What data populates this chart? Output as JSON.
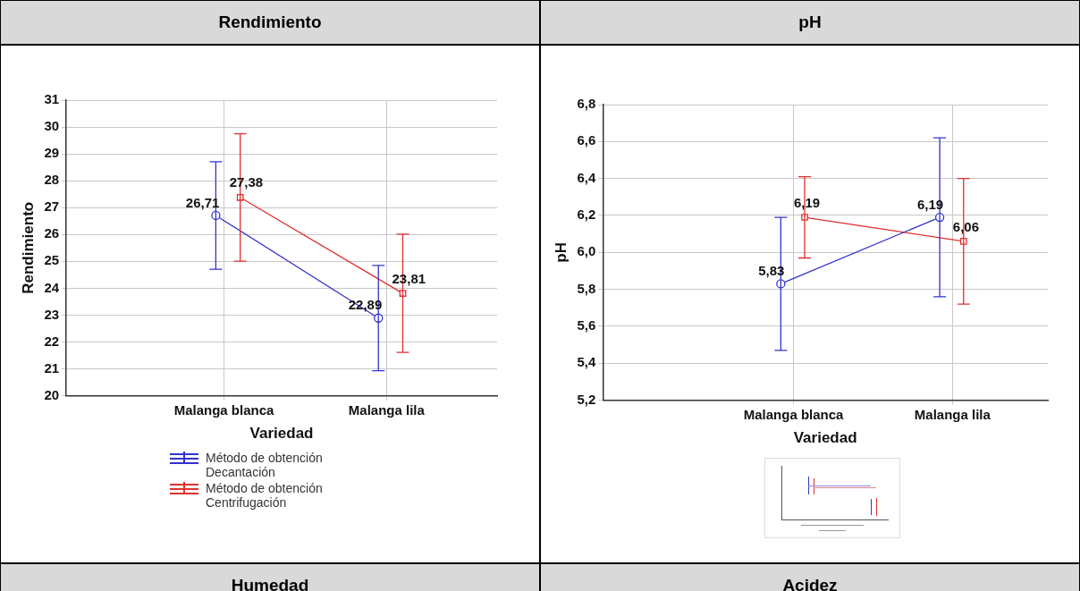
{
  "chart_data": [
    {
      "type": "line",
      "title": "Rendimiento",
      "xlabel": "Variedad",
      "ylabel": "Rendimiento",
      "categories": [
        "Malanga blanca",
        "Malanga lila"
      ],
      "series": [
        {
          "name": "Método de obtención Decantación",
          "color": "#3333cc",
          "marker": "circle",
          "values": [
            26.71,
            22.89
          ],
          "errors": [
            2.0,
            1.96
          ],
          "value_labels": [
            "26,71",
            "22,89"
          ]
        },
        {
          "name": "Método de obtención Centrifugación",
          "color": "#e03030",
          "marker": "square",
          "values": [
            27.38,
            23.81
          ],
          "errors": [
            2.37,
            2.2
          ],
          "value_labels": [
            "27,38",
            "23,81"
          ]
        }
      ],
      "ylim": [
        20,
        31
      ],
      "yticks": [
        20,
        21,
        22,
        23,
        24,
        25,
        26,
        27,
        28,
        29,
        30,
        31
      ],
      "grid": true,
      "legend": "bottom"
    },
    {
      "type": "line",
      "title": "pH",
      "xlabel": "Variedad",
      "ylabel": "pH",
      "categories": [
        "Malanga blanca",
        "Malanga lila"
      ],
      "series": [
        {
          "color": "#3333cc",
          "marker": "circle",
          "values": [
            5.83,
            6.19
          ],
          "errors": [
            0.36,
            0.43
          ],
          "value_labels": [
            "5,83",
            "6,19"
          ]
        },
        {
          "color": "#e03030",
          "marker": "square",
          "values": [
            6.19,
            6.06
          ],
          "errors": [
            0.22,
            0.34
          ],
          "value_labels": [
            "6,19",
            "6,06"
          ]
        }
      ],
      "ylim": [
        5.2,
        6.8
      ],
      "yticks": [
        {
          "value": 5.2,
          "label": "5,2"
        },
        {
          "value": 5.4,
          "label": "5,4"
        },
        {
          "value": 5.6,
          "label": "5,6"
        },
        {
          "value": 5.8,
          "label": "5,8"
        },
        {
          "value": 6.0,
          "label": "6,0"
        },
        {
          "value": 6.2,
          "label": "6,2"
        },
        {
          "value": 6.4,
          "label": "6,4"
        },
        {
          "value": 6.6,
          "label": "6,6"
        },
        {
          "value": 6.8,
          "label": "6,8"
        }
      ],
      "grid": true
    },
    {
      "type": "other",
      "title": "Humedad"
    },
    {
      "type": "other",
      "title": "Acidez"
    }
  ]
}
